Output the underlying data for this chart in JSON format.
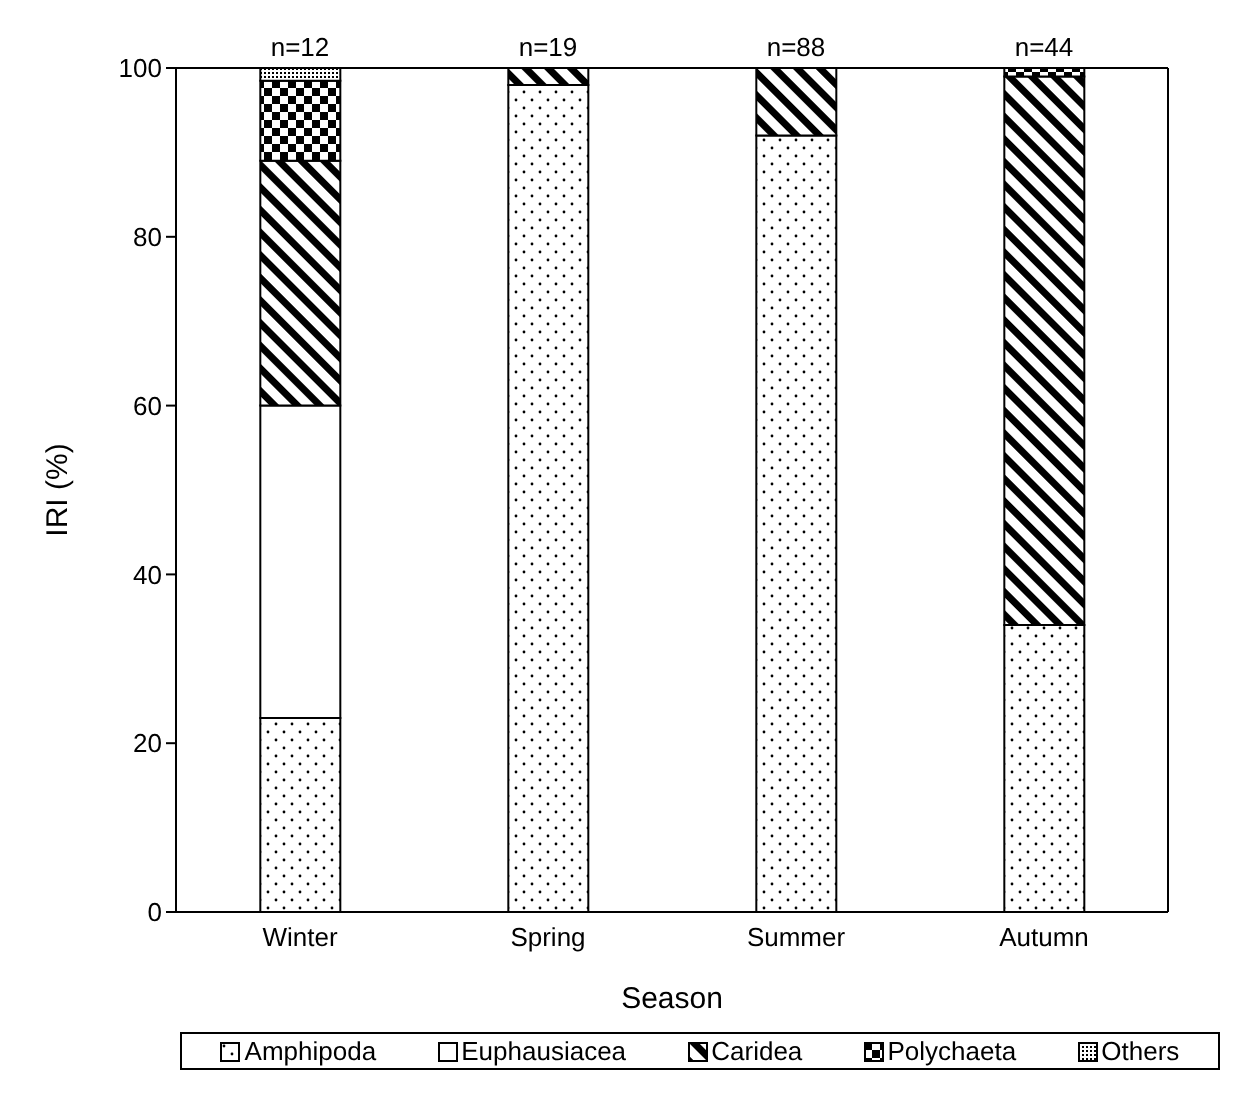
{
  "chart_data": {
    "type": "bar",
    "stacked": true,
    "categories": [
      "Winter",
      "Spring",
      "Summer",
      "Autumn"
    ],
    "xlabel": "Season",
    "ylabel": "IRI (%)",
    "ylim": [
      0,
      100
    ],
    "yticks": [
      0,
      20,
      40,
      60,
      80,
      100
    ],
    "grid": false,
    "legend": "bottom",
    "series": [
      {
        "name": "Amphipoda",
        "color": "#000000",
        "values": [
          23,
          98,
          92,
          34
        ]
      },
      {
        "name": "Euphausiacea",
        "color": "#ffffff",
        "values": [
          37,
          0,
          0,
          0
        ]
      },
      {
        "name": "Caridea",
        "color": "#000000",
        "values": [
          29,
          2,
          8,
          65
        ]
      },
      {
        "name": "Polychaeta",
        "color": "#000000",
        "values": [
          9.5,
          0,
          0,
          1
        ]
      },
      {
        "name": "Others",
        "color": "#000000",
        "values": [
          1.5,
          0,
          0,
          0
        ]
      }
    ],
    "annotations": [
      {
        "text": "n=12",
        "x": "Winter",
        "y": 100
      },
      {
        "text": "n=19",
        "x": "Spring",
        "y": 100
      },
      {
        "text": "n=88",
        "x": "Summer",
        "y": 100
      },
      {
        "text": "n=44",
        "x": "Autumn",
        "y": 100
      }
    ]
  }
}
